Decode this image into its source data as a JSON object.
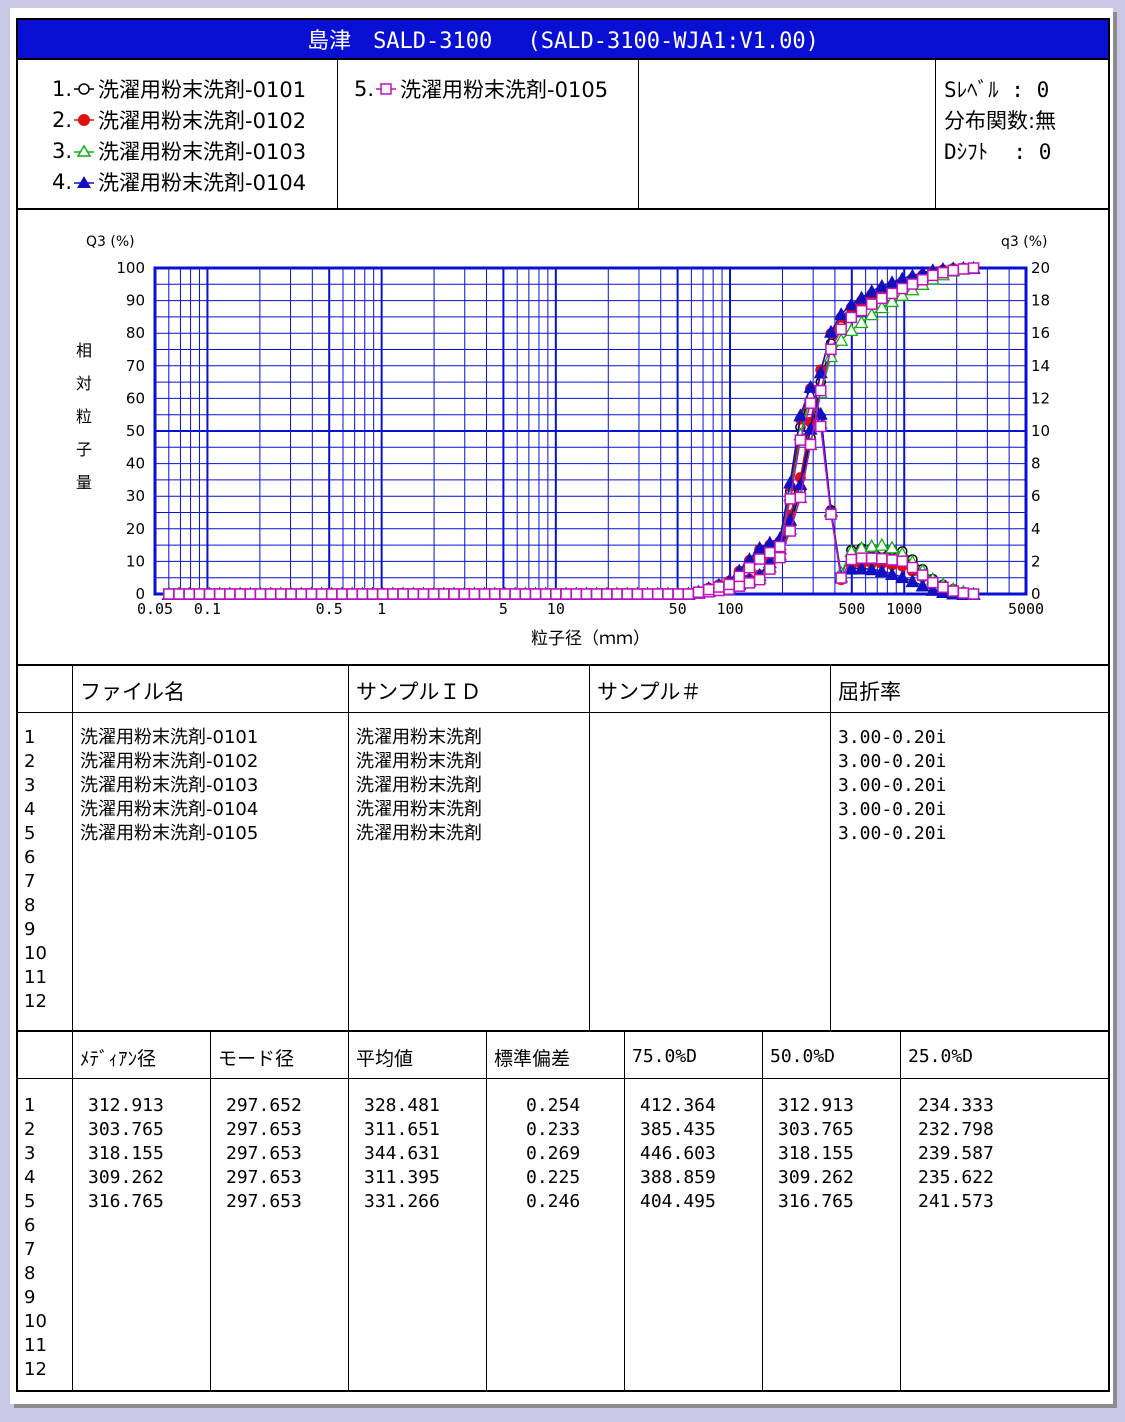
{
  "header": {
    "title": "島津　SALD-3100　 (SALD-3100-WJA1:V1.00)"
  },
  "legend": {
    "items": [
      {
        "num": "1.",
        "marker": "circle-open",
        "color": "#000000",
        "label": "洗濯用粉末洗剤-0101"
      },
      {
        "num": "2.",
        "marker": "circle-filled",
        "color": "#e01010",
        "label": "洗濯用粉末洗剤-0102"
      },
      {
        "num": "3.",
        "marker": "triangle-open",
        "color": "#10b010",
        "label": "洗濯用粉末洗剤-0103"
      },
      {
        "num": "4.",
        "marker": "triangle-filled",
        "color": "#1010c0",
        "label": "洗濯用粉末洗剤-0104"
      },
      {
        "num": "5.",
        "marker": "square-open",
        "color": "#c010c0",
        "label": "洗濯用粉末洗剤-0105"
      }
    ],
    "settings": [
      "Sﾚﾍﾞﾙ : 0",
      "分布関数:無",
      "Dｼﾌﾄ  : 0"
    ]
  },
  "chart_data": {
    "type": "line",
    "x_scale": "log",
    "xlim": [
      0.05,
      5000
    ],
    "xticks": [
      "0.05",
      "0.1",
      "0.5",
      "1",
      "5",
      "10",
      "50",
      "100",
      "500",
      "1000",
      "5000"
    ],
    "xlabel": "粒子径（ｍｍ）",
    "left_axis": {
      "label": "Q3 (%)",
      "range": [
        0,
        100
      ],
      "ticks": [
        "0",
        "10",
        "20",
        "30",
        "40",
        "50",
        "60",
        "70",
        "80",
        "90",
        "100"
      ],
      "title_chars": [
        "相",
        "対",
        "粒",
        "子",
        "量"
      ]
    },
    "right_axis": {
      "label": "q3 (%)",
      "range": [
        0,
        20
      ],
      "ticks": [
        "0",
        "2",
        "4",
        "6",
        "8",
        "10",
        "12",
        "14",
        "16",
        "18",
        "20"
      ]
    },
    "grid": true,
    "series": [
      {
        "name": "洗濯用粉末洗剤-0101",
        "color": "#000000",
        "marker": "circle-open",
        "cumulative": [
          [
            0.05,
            0
          ],
          [
            60,
            0
          ],
          [
            100,
            2
          ],
          [
            150,
            5
          ],
          [
            200,
            14
          ],
          [
            250,
            30
          ],
          [
            300,
            52
          ],
          [
            350,
            72
          ],
          [
            400,
            80
          ],
          [
            500,
            86
          ],
          [
            700,
            91
          ],
          [
            1000,
            95
          ],
          [
            1500,
            98.5
          ],
          [
            2000,
            99.8
          ],
          [
            2500,
            100
          ]
        ],
        "frequency": [
          [
            0.05,
            0
          ],
          [
            60,
            0
          ],
          [
            100,
            0.7
          ],
          [
            150,
            2.5
          ],
          [
            200,
            3.2
          ],
          [
            250,
            10
          ],
          [
            280,
            12
          ],
          [
            300,
            13
          ],
          [
            330,
            11
          ],
          [
            360,
            8.8
          ],
          [
            400,
            1.5
          ],
          [
            450,
            1.0
          ],
          [
            500,
            2.8
          ],
          [
            700,
            2.8
          ],
          [
            1000,
            2.6
          ],
          [
            1500,
            0.8
          ],
          [
            2000,
            0.2
          ],
          [
            2500,
            0
          ]
        ]
      },
      {
        "name": "洗濯用粉末洗剤-0102",
        "color": "#e01010",
        "marker": "circle-filled",
        "cumulative": [
          [
            0.05,
            0
          ],
          [
            60,
            0
          ],
          [
            100,
            2
          ],
          [
            150,
            6
          ],
          [
            200,
            16
          ],
          [
            250,
            34
          ],
          [
            300,
            57
          ],
          [
            350,
            75
          ],
          [
            400,
            83
          ],
          [
            500,
            88
          ],
          [
            700,
            93
          ],
          [
            1000,
            96
          ],
          [
            1500,
            99
          ],
          [
            2000,
            100
          ],
          [
            2500,
            100
          ]
        ],
        "frequency": [
          [
            0.05,
            0
          ],
          [
            60,
            0
          ],
          [
            100,
            0.8
          ],
          [
            150,
            2.8
          ],
          [
            200,
            3.3
          ],
          [
            250,
            10.5
          ],
          [
            280,
            12.4
          ],
          [
            300,
            12.8
          ],
          [
            330,
            10.5
          ],
          [
            360,
            8.8
          ],
          [
            400,
            1.3
          ],
          [
            450,
            0.7
          ],
          [
            500,
            1.8
          ],
          [
            700,
            1.9
          ],
          [
            1000,
            1.7
          ],
          [
            1500,
            0.6
          ],
          [
            2000,
            0.1
          ],
          [
            2500,
            0
          ]
        ]
      },
      {
        "name": "洗濯用粉末洗剤-0103",
        "color": "#10b010",
        "marker": "triangle-open",
        "cumulative": [
          [
            0.05,
            0
          ],
          [
            60,
            0
          ],
          [
            100,
            2
          ],
          [
            150,
            5
          ],
          [
            200,
            13
          ],
          [
            250,
            28
          ],
          [
            300,
            50
          ],
          [
            350,
            68
          ],
          [
            400,
            76
          ],
          [
            500,
            81
          ],
          [
            700,
            87
          ],
          [
            1000,
            92
          ],
          [
            1500,
            97
          ],
          [
            2000,
            99.5
          ],
          [
            2500,
            100
          ]
        ],
        "frequency": [
          [
            0.05,
            0
          ],
          [
            60,
            0
          ],
          [
            100,
            0.7
          ],
          [
            150,
            2.4
          ],
          [
            200,
            3.1
          ],
          [
            250,
            9.5
          ],
          [
            280,
            11.8
          ],
          [
            300,
            12.6
          ],
          [
            330,
            10.6
          ],
          [
            360,
            8.6
          ],
          [
            400,
            1.5
          ],
          [
            450,
            1.2
          ],
          [
            500,
            2.7
          ],
          [
            700,
            3.0
          ],
          [
            800,
            3.0
          ],
          [
            1000,
            2.4
          ],
          [
            1500,
            0.8
          ],
          [
            2000,
            0.2
          ],
          [
            2500,
            0
          ]
        ]
      },
      {
        "name": "洗濯用粉末洗剤-0104",
        "color": "#1010c0",
        "marker": "triangle-filled",
        "cumulative": [
          [
            0.05,
            0
          ],
          [
            60,
            0
          ],
          [
            100,
            2
          ],
          [
            150,
            6
          ],
          [
            200,
            15
          ],
          [
            250,
            32
          ],
          [
            300,
            55
          ],
          [
            350,
            75
          ],
          [
            400,
            84
          ],
          [
            500,
            89
          ],
          [
            700,
            94
          ],
          [
            1000,
            97
          ],
          [
            1500,
            99.5
          ],
          [
            2000,
            100
          ],
          [
            2500,
            100
          ]
        ],
        "frequency": [
          [
            0.05,
            0
          ],
          [
            60,
            0
          ],
          [
            100,
            0.8
          ],
          [
            150,
            2.9
          ],
          [
            200,
            3.5
          ],
          [
            250,
            10.8
          ],
          [
            280,
            12.2
          ],
          [
            300,
            13.2
          ],
          [
            330,
            11.2
          ],
          [
            360,
            8.8
          ],
          [
            400,
            1.5
          ],
          [
            450,
            0.9
          ],
          [
            500,
            1.6
          ],
          [
            700,
            1.5
          ],
          [
            1000,
            1.0
          ],
          [
            1500,
            0.2
          ],
          [
            2000,
            0
          ],
          [
            2500,
            0
          ]
        ]
      },
      {
        "name": "洗濯用粉末洗剤-0105",
        "color": "#c010c0",
        "marker": "square-open",
        "cumulative": [
          [
            0.05,
            0
          ],
          [
            60,
            0
          ],
          [
            100,
            1.5
          ],
          [
            150,
            4.5
          ],
          [
            200,
            12
          ],
          [
            250,
            28
          ],
          [
            300,
            50
          ],
          [
            350,
            69
          ],
          [
            400,
            79
          ],
          [
            500,
            85
          ],
          [
            700,
            90
          ],
          [
            1000,
            94
          ],
          [
            1500,
            98
          ],
          [
            2000,
            99.5
          ],
          [
            2500,
            100
          ]
        ],
        "frequency": [
          [
            0.05,
            0
          ],
          [
            60,
            0
          ],
          [
            100,
            0.6
          ],
          [
            150,
            2.2
          ],
          [
            200,
            3.0
          ],
          [
            250,
            9.2
          ],
          [
            280,
            11.2
          ],
          [
            300,
            12.2
          ],
          [
            330,
            10.4
          ],
          [
            360,
            8.4
          ],
          [
            400,
            1.4
          ],
          [
            450,
            0.8
          ],
          [
            500,
            2.2
          ],
          [
            700,
            2.2
          ],
          [
            1000,
            2.0
          ],
          [
            1500,
            0.6
          ],
          [
            2000,
            0.1
          ],
          [
            2500,
            0
          ]
        ]
      }
    ]
  },
  "info_table": {
    "headers": [
      "ファイル名",
      "サンプルＩＤ",
      "サンプル＃",
      "屈折率"
    ],
    "row_numbers": [
      "1",
      "2",
      "3",
      "4",
      "5",
      "6",
      "7",
      "8",
      "9",
      "10",
      "11",
      "12"
    ],
    "files": [
      "洗濯用粉末洗剤-0101",
      "洗濯用粉末洗剤-0102",
      "洗濯用粉末洗剤-0103",
      "洗濯用粉末洗剤-0104",
      "洗濯用粉末洗剤-0105"
    ],
    "sample_ids": [
      "洗濯用粉末洗剤",
      "洗濯用粉末洗剤",
      "洗濯用粉末洗剤",
      "洗濯用粉末洗剤",
      "洗濯用粉末洗剤"
    ],
    "refractive": [
      "3.00-0.20i",
      "3.00-0.20i",
      "3.00-0.20i",
      "3.00-0.20i",
      "3.00-0.20i"
    ]
  },
  "stats_table": {
    "headers": [
      "ﾒﾃﾞｨｱﾝ径",
      "モード径",
      "平均値",
      "標準偏差",
      "75.0%D",
      "50.0%D",
      "25.0%D"
    ],
    "row_numbers": [
      "1",
      "2",
      "3",
      "4",
      "5",
      "6",
      "7",
      "8",
      "9",
      "10",
      "11",
      "12"
    ],
    "median": [
      "312.913",
      "303.765",
      "318.155",
      "309.262",
      "316.765"
    ],
    "mode": [
      "297.652",
      "297.653",
      "297.653",
      "297.653",
      "297.653"
    ],
    "mean": [
      "328.481",
      "311.651",
      "344.631",
      "311.395",
      "331.266"
    ],
    "std": [
      "0.254",
      "0.233",
      "0.269",
      "0.225",
      "0.246"
    ],
    "d75": [
      "412.364",
      "385.435",
      "446.603",
      "388.859",
      "404.495"
    ],
    "d50": [
      "312.913",
      "303.765",
      "318.155",
      "309.262",
      "316.765"
    ],
    "d25": [
      "234.333",
      "232.798",
      "239.587",
      "235.622",
      "241.573"
    ]
  }
}
